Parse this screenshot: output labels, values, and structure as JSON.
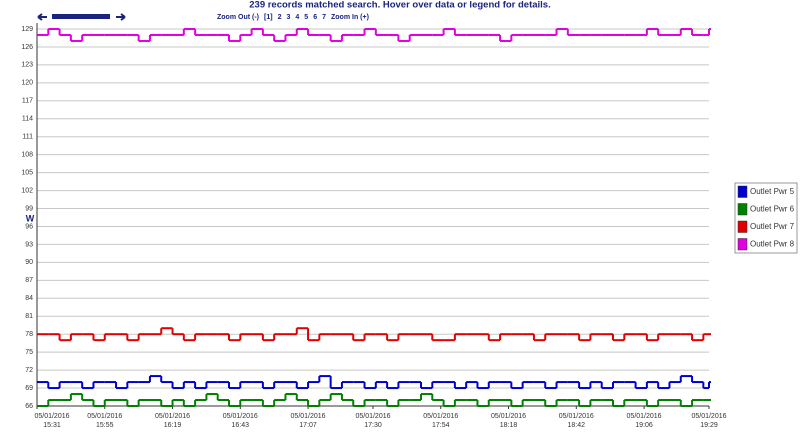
{
  "chart_data": {
    "type": "line",
    "step": true,
    "title": "239 records matched search. Hover over data or legend for details.",
    "y_label": "W",
    "x": [
      "05/01/2016 15:31",
      "05/01/2016 15:35",
      "05/01/2016 15:39",
      "05/01/2016 15:43",
      "05/01/2016 15:47",
      "05/01/2016 15:51",
      "05/01/2016 15:55",
      "05/01/2016 15:59",
      "05/01/2016 16:03",
      "05/01/2016 16:07",
      "05/01/2016 16:11",
      "05/01/2016 16:15",
      "05/01/2016 16:19",
      "05/01/2016 16:23",
      "05/01/2016 16:27",
      "05/01/2016 16:31",
      "05/01/2016 16:35",
      "05/01/2016 16:39",
      "05/01/2016 16:43",
      "05/01/2016 16:47",
      "05/01/2016 16:51",
      "05/01/2016 16:55",
      "05/01/2016 16:59",
      "05/01/2016 17:03",
      "05/01/2016 17:07",
      "05/01/2016 17:11",
      "05/01/2016 17:15",
      "05/01/2016 17:19",
      "05/01/2016 17:23",
      "05/01/2016 17:27",
      "05/01/2016 17:31",
      "05/01/2016 17:35",
      "05/01/2016 17:39",
      "05/01/2016 17:43",
      "05/01/2016 17:47",
      "05/01/2016 17:51",
      "05/01/2016 17:55",
      "05/01/2016 17:59",
      "05/01/2016 18:03",
      "05/01/2016 18:07",
      "05/01/2016 18:11",
      "05/01/2016 18:15",
      "05/01/2016 18:19",
      "05/01/2016 18:23",
      "05/01/2016 18:27",
      "05/01/2016 18:31",
      "05/01/2016 18:35",
      "05/01/2016 18:39",
      "05/01/2016 18:43",
      "05/01/2016 18:47",
      "05/01/2016 18:51",
      "05/01/2016 18:55",
      "05/01/2016 18:59",
      "05/01/2016 19:03",
      "05/01/2016 19:07",
      "05/01/2016 19:11",
      "05/01/2016 19:15",
      "05/01/2016 19:19",
      "05/01/2016 19:23",
      "05/01/2016 19:27",
      "05/01/2016 19:29"
    ],
    "series": [
      {
        "name": "Outlet Pwr 5",
        "color": "#0000cc",
        "values": [
          70,
          69,
          70,
          70,
          69,
          70,
          70,
          69,
          70,
          70,
          71,
          70,
          69,
          70,
          69,
          70,
          70,
          69,
          70,
          70,
          69,
          70,
          70,
          69,
          70,
          71,
          69,
          70,
          70,
          69,
          70,
          69,
          70,
          70,
          69,
          70,
          70,
          69,
          70,
          69,
          70,
          70,
          69,
          70,
          70,
          69,
          70,
          70,
          69,
          70,
          69,
          70,
          70,
          69,
          70,
          69,
          70,
          71,
          70,
          69,
          70
        ]
      },
      {
        "name": "Outlet Pwr 6",
        "color": "#008000",
        "values": [
          66,
          67,
          67,
          68,
          67,
          66,
          67,
          67,
          66,
          67,
          67,
          66,
          67,
          66,
          67,
          68,
          67,
          66,
          67,
          67,
          66,
          67,
          68,
          67,
          66,
          67,
          68,
          67,
          66,
          67,
          67,
          66,
          67,
          67,
          68,
          67,
          66,
          67,
          67,
          66,
          67,
          67,
          66,
          67,
          67,
          66,
          67,
          67,
          66,
          67,
          67,
          66,
          67,
          67,
          66,
          67,
          67,
          66,
          67,
          67,
          67
        ]
      },
      {
        "name": "Outlet Pwr 7",
        "color": "#e00000",
        "values": [
          78,
          78,
          77,
          78,
          78,
          77,
          78,
          78,
          77,
          78,
          78,
          79,
          78,
          77,
          78,
          78,
          78,
          77,
          78,
          78,
          77,
          78,
          78,
          79,
          77,
          78,
          78,
          78,
          77,
          78,
          78,
          77,
          78,
          78,
          78,
          77,
          77,
          78,
          78,
          78,
          77,
          78,
          78,
          78,
          77,
          78,
          78,
          78,
          77,
          78,
          78,
          77,
          78,
          78,
          77,
          78,
          78,
          78,
          77,
          78,
          78
        ]
      },
      {
        "name": "Outlet Pwr 8",
        "color": "#e000e0",
        "values": [
          128,
          129,
          128,
          127,
          128,
          128,
          128,
          128,
          128,
          127,
          128,
          128,
          128,
          129,
          128,
          128,
          128,
          127,
          128,
          129,
          128,
          127,
          128,
          129,
          128,
          128,
          127,
          128,
          128,
          129,
          128,
          128,
          127,
          128,
          128,
          128,
          129,
          128,
          128,
          128,
          128,
          127,
          128,
          128,
          128,
          128,
          129,
          128,
          128,
          128,
          128,
          128,
          128,
          128,
          129,
          128,
          128,
          129,
          128,
          128,
          129
        ]
      }
    ],
    "xlim": [
      "05/01/2016 15:31",
      "05/01/2016 19:29"
    ],
    "xticks": [
      "05/01/2016 15:31",
      "05/01/2016 15:55",
      "05/01/2016 16:19",
      "05/01/2016 16:43",
      "05/01/2016 17:07",
      "05/01/2016 17:30",
      "05/01/2016 17:54",
      "05/01/2016 18:18",
      "05/01/2016 18:42",
      "05/01/2016 19:06",
      "05/01/2016 19:29"
    ],
    "ylim": [
      66,
      129
    ],
    "yticks": [
      66,
      69,
      72,
      75,
      78,
      81,
      84,
      87,
      90,
      93,
      96,
      99,
      102,
      105,
      108,
      111,
      114,
      117,
      120,
      123,
      126,
      129
    ],
    "grid": true,
    "legend": "right"
  },
  "nav": {
    "zoom_out": "Zoom Out (-)",
    "pages": [
      "[1]",
      "2",
      "3",
      "4",
      "5",
      "6",
      "7"
    ],
    "zoom_in": "Zoom In (+)"
  }
}
